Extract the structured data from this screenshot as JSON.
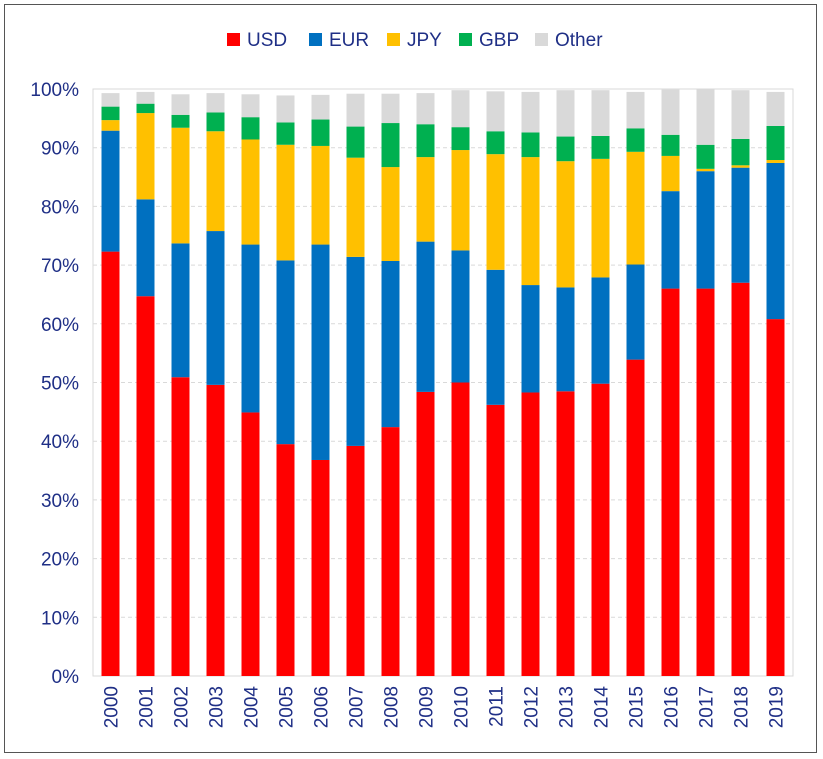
{
  "chart_data": {
    "type": "bar",
    "stacked": true,
    "categories": [
      "2000",
      "2001",
      "2002",
      "2003",
      "2004",
      "2005",
      "2006",
      "2007",
      "2008",
      "2009",
      "2010",
      "2011",
      "2012",
      "2013",
      "2014",
      "2015",
      "2016",
      "2017",
      "2018",
      "2019"
    ],
    "series": [
      {
        "name": "USD",
        "color": "#ff0000",
        "values": [
          72.3,
          64.7,
          50.9,
          49.6,
          44.9,
          39.5,
          36.8,
          39.2,
          42.4,
          48.4,
          50.0,
          46.2,
          48.3,
          48.5,
          49.8,
          53.9,
          66.0,
          66.0,
          67.0,
          60.8
        ]
      },
      {
        "name": "EUR",
        "color": "#0070c0",
        "values": [
          20.6,
          16.5,
          22.8,
          26.2,
          28.6,
          31.3,
          36.7,
          32.2,
          28.3,
          25.6,
          22.5,
          23.0,
          18.3,
          17.7,
          18.1,
          16.2,
          16.6,
          20.0,
          19.6,
          26.6
        ]
      },
      {
        "name": "JPY",
        "color": "#ffc000",
        "values": [
          1.8,
          14.7,
          19.7,
          17.0,
          17.9,
          19.7,
          16.8,
          16.9,
          16.0,
          14.4,
          17.1,
          19.7,
          21.8,
          21.5,
          20.2,
          19.2,
          6.0,
          0.4,
          0.4,
          0.5
        ]
      },
      {
        "name": "GBP",
        "color": "#00b050",
        "values": [
          2.3,
          1.6,
          2.2,
          3.2,
          3.8,
          3.8,
          4.5,
          5.3,
          7.5,
          5.6,
          3.9,
          3.9,
          4.2,
          4.2,
          3.9,
          4.0,
          3.6,
          4.1,
          4.5,
          5.8
        ]
      },
      {
        "name": "Other",
        "color": "#d9d9d9",
        "values": [
          2.3,
          2.0,
          3.5,
          3.3,
          3.9,
          4.6,
          4.2,
          5.6,
          5.0,
          5.3,
          6.3,
          6.8,
          6.9,
          7.9,
          7.8,
          6.2,
          7.7,
          9.5,
          8.3,
          5.8
        ]
      }
    ],
    "ylim": [
      0,
      100
    ],
    "yticks": [
      "0%",
      "10%",
      "20%",
      "30%",
      "40%",
      "50%",
      "60%",
      "70%",
      "80%",
      "90%",
      "100%"
    ],
    "grid": true,
    "legend_position": "top"
  }
}
